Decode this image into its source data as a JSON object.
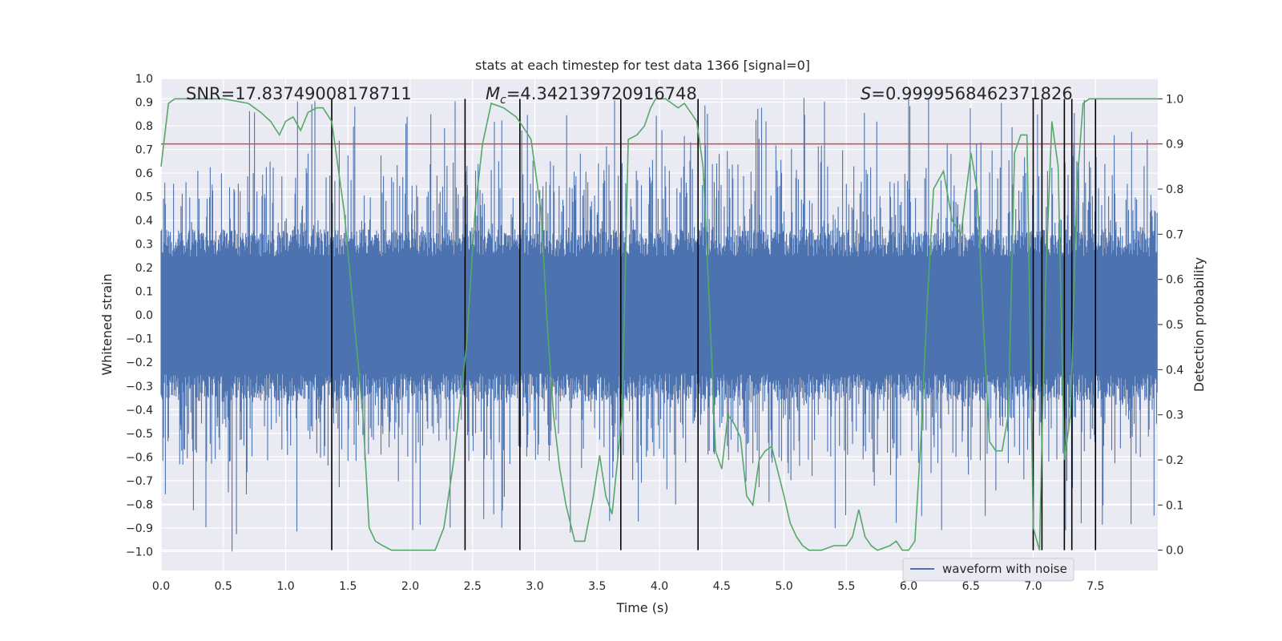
{
  "chart_data": {
    "type": "line",
    "title": "stats at each timestep for test data 1366 [signal=0]",
    "xlabel": "Time (s)",
    "ylabel": "Whitened strain",
    "y2label": "Detection probability",
    "xlim": [
      0.0,
      8.0
    ],
    "ylim": [
      -1.08,
      1.0
    ],
    "y2lim": [
      -0.045,
      1.045
    ],
    "xticks": [
      0.0,
      0.5,
      1.0,
      1.5,
      2.0,
      2.5,
      3.0,
      3.5,
      4.0,
      4.5,
      5.0,
      5.5,
      6.0,
      6.5,
      7.0,
      7.5
    ],
    "xtick_labels": [
      "0.0",
      "0.5",
      "1.0",
      "1.5",
      "2.0",
      "2.5",
      "3.0",
      "3.5",
      "4.0",
      "4.5",
      "5.0",
      "5.5",
      "6.0",
      "6.5",
      "7.0",
      "7.5"
    ],
    "yticks": [
      1.0,
      0.9,
      0.8,
      0.7,
      0.6,
      0.5,
      0.4,
      0.3,
      0.2,
      0.1,
      0.0,
      -0.1,
      -0.2,
      -0.3,
      -0.4,
      -0.5,
      -0.6,
      -0.7,
      -0.8,
      -0.9,
      -1.0
    ],
    "ytick_labels": [
      "1.0",
      "0.9",
      "0.8",
      "0.7",
      "0.6",
      "0.5",
      "0.4",
      "0.3",
      "0.2",
      "0.1",
      "0.0",
      "−0.1",
      "−0.2",
      "−0.3",
      "−0.4",
      "−0.5",
      "−0.6",
      "−0.7",
      "−0.8",
      "−0.9",
      "−1.0"
    ],
    "y2ticks": [
      1.0,
      0.9,
      0.8,
      0.7,
      0.6,
      0.5,
      0.4,
      0.3,
      0.2,
      0.1,
      0.0
    ],
    "y2tick_labels": [
      "1.0",
      "0.9",
      "0.8",
      "0.7",
      "0.6",
      "0.5",
      "0.4",
      "0.3",
      "0.2",
      "0.1",
      "0.0"
    ],
    "annotations": {
      "snr": "SNR=17.83749008178711",
      "mc_symbol": "M",
      "mc_sub": "c",
      "mc_value": "=4.342139720916748",
      "s_symbol": "S",
      "s_value": "=0.9999568462371826"
    },
    "legend": {
      "label": "waveform with noise",
      "placement": "lower-right"
    },
    "waveform": {
      "name": "waveform with noise",
      "color": "#4c72b0",
      "envelope": 0.33,
      "spike_max": 0.92,
      "spike_min": -1.0,
      "n_samples": 1600
    },
    "threshold_line": {
      "y": 0.9,
      "color": "#c44e52"
    },
    "probability_series": {
      "name": "Detection probability",
      "color": "#55a868",
      "x": [
        0.0,
        0.06,
        0.11,
        0.3,
        0.5,
        0.7,
        0.8,
        0.88,
        0.95,
        1.0,
        1.06,
        1.12,
        1.18,
        1.25,
        1.3,
        1.37,
        1.42,
        1.47,
        1.52,
        1.57,
        1.62,
        1.67,
        1.72,
        1.78,
        1.85,
        1.9,
        2.0,
        2.1,
        2.15,
        2.2,
        2.27,
        2.35,
        2.45,
        2.52,
        2.58,
        2.65,
        2.75,
        2.85,
        2.9,
        2.97,
        3.05,
        3.1,
        3.15,
        3.2,
        3.25,
        3.32,
        3.4,
        3.47,
        3.52,
        3.57,
        3.62,
        3.7,
        3.75,
        3.82,
        3.88,
        3.93,
        3.97,
        4.05,
        4.1,
        4.15,
        4.2,
        4.25,
        4.3,
        4.35,
        4.4,
        4.45,
        4.5,
        4.55,
        4.6,
        4.65,
        4.7,
        4.75,
        4.8,
        4.85,
        4.9,
        5.0,
        5.05,
        5.1,
        5.15,
        5.2,
        5.3,
        5.4,
        5.5,
        5.55,
        5.6,
        5.65,
        5.7,
        5.75,
        5.85,
        5.9,
        5.95,
        6.0,
        6.05,
        6.1,
        6.15,
        6.2,
        6.28,
        6.35,
        6.42,
        6.5,
        6.55,
        6.6,
        6.65,
        6.7,
        6.75,
        6.8,
        6.85,
        6.9,
        6.95,
        7.0,
        7.05,
        7.1,
        7.15,
        7.2,
        7.25,
        7.3,
        7.35,
        7.4,
        7.45,
        7.5,
        7.55,
        7.6,
        7.7,
        8.0
      ],
      "values": [
        0.85,
        0.99,
        1.0,
        1.0,
        1.0,
        0.99,
        0.97,
        0.95,
        0.92,
        0.95,
        0.96,
        0.93,
        0.97,
        0.98,
        0.98,
        0.95,
        0.85,
        0.75,
        0.6,
        0.45,
        0.3,
        0.05,
        0.02,
        0.01,
        0.0,
        0.0,
        0.0,
        0.0,
        0.0,
        0.0,
        0.05,
        0.2,
        0.45,
        0.75,
        0.9,
        0.99,
        0.98,
        0.96,
        0.94,
        0.91,
        0.75,
        0.5,
        0.3,
        0.18,
        0.1,
        0.02,
        0.02,
        0.12,
        0.21,
        0.12,
        0.08,
        0.3,
        0.91,
        0.92,
        0.94,
        0.98,
        1.0,
        1.0,
        0.99,
        0.98,
        0.99,
        0.97,
        0.95,
        0.85,
        0.55,
        0.22,
        0.18,
        0.3,
        0.28,
        0.25,
        0.12,
        0.1,
        0.2,
        0.22,
        0.23,
        0.12,
        0.06,
        0.03,
        0.01,
        0.0,
        0.0,
        0.01,
        0.01,
        0.03,
        0.09,
        0.03,
        0.01,
        0.0,
        0.01,
        0.02,
        0.0,
        0.0,
        0.02,
        0.25,
        0.55,
        0.8,
        0.84,
        0.73,
        0.7,
        0.88,
        0.8,
        0.5,
        0.24,
        0.22,
        0.22,
        0.3,
        0.88,
        0.92,
        0.92,
        0.05,
        0.0,
        0.6,
        0.95,
        0.85,
        0.2,
        0.3,
        0.8,
        0.99,
        1.0,
        1.0,
        1.0,
        1.0,
        1.0,
        1.0
      ]
    },
    "vertical_lines": [
      1.37,
      2.44,
      2.88,
      3.69,
      4.31,
      7.0,
      7.07,
      7.25,
      7.31,
      7.5
    ]
  }
}
